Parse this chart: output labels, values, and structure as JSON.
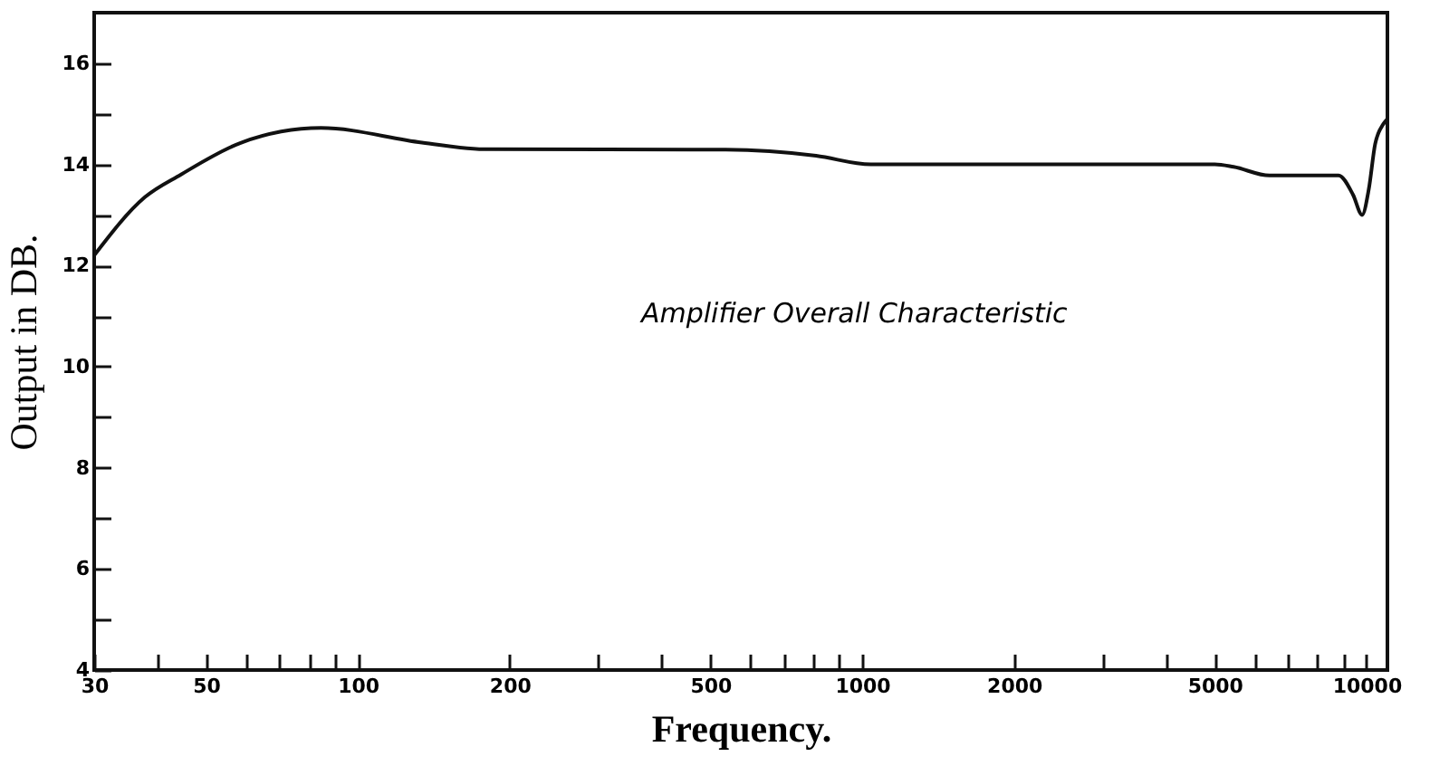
{
  "chart_data": {
    "type": "line",
    "xlabel": "Frequency.",
    "ylabel": "Output in DB.",
    "annotations": [
      "Amplifier Overall Characteristic"
    ],
    "x": [
      30,
      37.8,
      44.6,
      58.7,
      84.5,
      134,
      178,
      536,
      810,
      1040,
      2800,
      5000,
      5450,
      6420,
      8800,
      9400,
      9800,
      10100,
      10400,
      10800,
      11000
    ],
    "series": [
      {
        "color": "#111111",
        "values": [
          12.2,
          13.35,
          13.8,
          14.43,
          14.72,
          14.43,
          14.3,
          14.29,
          14.17,
          14.0,
          14.0,
          14.0,
          13.95,
          13.78,
          13.78,
          13.4,
          13.0,
          13.5,
          14.4,
          14.8,
          14.9
        ]
      }
    ],
    "log": "x",
    "xlim": [
      30,
      11000
    ],
    "ylim": [
      4,
      17
    ],
    "xticks": [
      30,
      {
        "value": 40,
        "label": null
      },
      50,
      {
        "value": 60,
        "label": null
      },
      {
        "value": 70,
        "label": null
      },
      {
        "value": 80,
        "label": null
      },
      {
        "value": 90,
        "label": null
      },
      100,
      200,
      {
        "value": 300,
        "label": null
      },
      {
        "value": 400,
        "label": null
      },
      500,
      {
        "value": 600,
        "label": null
      },
      {
        "value": 700,
        "label": null
      },
      {
        "value": 800,
        "label": null
      },
      {
        "value": 900,
        "label": null
      },
      1000,
      2000,
      {
        "value": 3000,
        "label": null
      },
      {
        "value": 4000,
        "label": null
      },
      5000,
      {
        "value": 6000,
        "label": null
      },
      {
        "value": 7000,
        "label": null
      },
      {
        "value": 8000,
        "label": null
      },
      {
        "value": 9000,
        "label": null
      },
      10000
    ],
    "yticks": [
      4,
      {
        "value": 5,
        "label": null
      },
      6,
      {
        "value": 7,
        "label": null
      },
      8,
      {
        "value": 9,
        "label": null
      },
      10,
      {
        "value": 11,
        "label": null
      },
      12,
      {
        "value": 13,
        "label": null
      },
      14,
      {
        "value": 15,
        "label": null
      },
      16
    ],
    "grid": false,
    "marker": "none",
    "line_style": "solid"
  }
}
